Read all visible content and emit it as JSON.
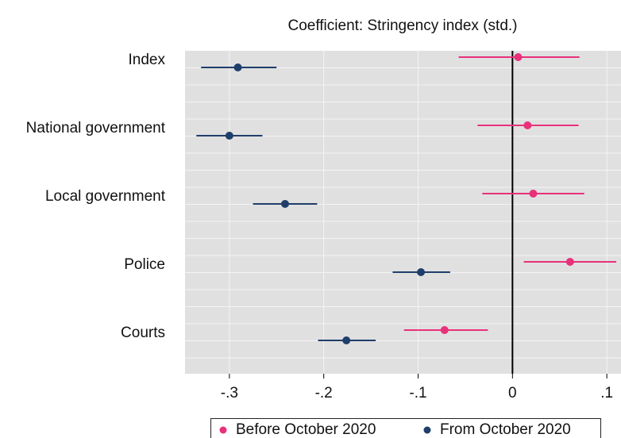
{
  "chart_data": {
    "type": "coefplot",
    "title": "Coefficient: Stringency index (std.)",
    "categories": [
      "Index",
      "National government",
      "Local government",
      "Police",
      "Courts"
    ],
    "series": [
      {
        "name": "Before October 2020",
        "color": "#e8317a",
        "values": [
          0.006,
          0.016,
          0.022,
          0.061,
          -0.072
        ],
        "ci_low": [
          -0.057,
          -0.037,
          -0.032,
          0.012,
          -0.115
        ],
        "ci_high": [
          0.071,
          0.07,
          0.076,
          0.11,
          -0.026
        ]
      },
      {
        "name": "From October 2020",
        "color": "#1f3e6b",
        "values": [
          -0.291,
          -0.3,
          -0.241,
          -0.097,
          -0.176
        ],
        "ci_low": [
          -0.33,
          -0.335,
          -0.275,
          -0.127,
          -0.206
        ],
        "ci_high": [
          -0.25,
          -0.265,
          -0.207,
          -0.066,
          -0.145
        ]
      }
    ],
    "xlim": [
      -0.347,
      0.115
    ],
    "xticks": [
      {
        "value": -0.3,
        "label": "-.3"
      },
      {
        "value": -0.2,
        "label": "-.2"
      },
      {
        "value": -0.1,
        "label": "-.1"
      },
      0,
      {
        "value": 0.1,
        "label": ".1"
      }
    ],
    "grid": true
  }
}
